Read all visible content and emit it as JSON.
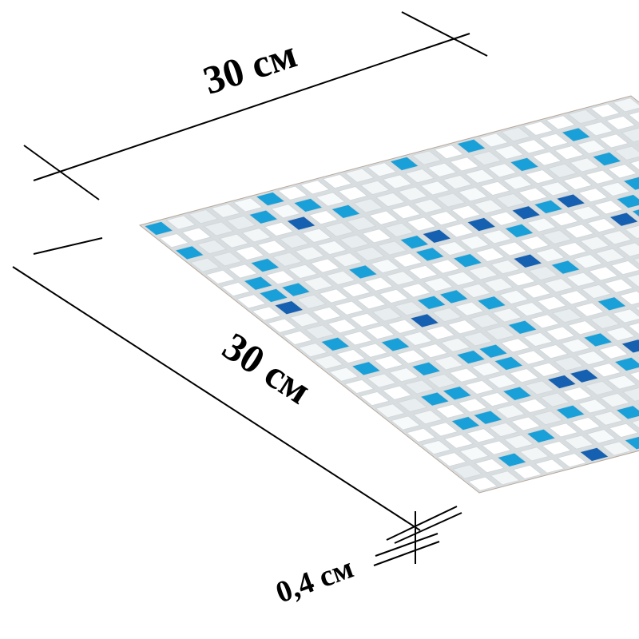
{
  "dimensions": {
    "width": "30 см",
    "length": "30 см",
    "thickness": "0,4 см"
  }
}
